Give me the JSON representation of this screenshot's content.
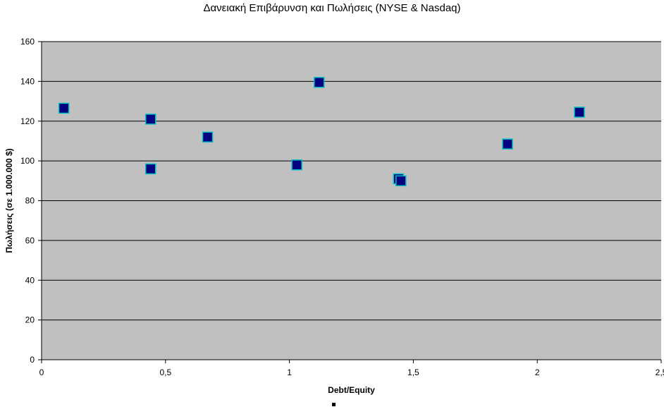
{
  "chart_data": {
    "type": "scatter",
    "title": "Δανειακή Επιβάρυνση και Πωλήσεις (NYSE & Nasdaq)",
    "xlabel": "Debt/Equity",
    "ylabel": "Πωλήσεις (σε 1.000.000 $)",
    "xlim": [
      0,
      2.5
    ],
    "ylim": [
      0,
      160
    ],
    "xticks": [
      0,
      0.5,
      1,
      1.5,
      2,
      2.5
    ],
    "xtick_labels": [
      "0",
      "0,5",
      "1",
      "1,5",
      "2",
      "2,5"
    ],
    "yticks": [
      0,
      20,
      40,
      60,
      80,
      100,
      120,
      140,
      160
    ],
    "ytick_labels": [
      "0",
      "20",
      "40",
      "60",
      "80",
      "100",
      "120",
      "140",
      "160"
    ],
    "grid": "horizontal",
    "legend": "bottom",
    "series": [
      {
        "points": [
          {
            "x": 0.09,
            "y": 126.5
          },
          {
            "x": 0.44,
            "y": 121.0
          },
          {
            "x": 0.44,
            "y": 96.0
          },
          {
            "x": 0.67,
            "y": 112.0
          },
          {
            "x": 1.03,
            "y": 98.0
          },
          {
            "x": 1.12,
            "y": 139.5
          },
          {
            "x": 1.44,
            "y": 91.0
          },
          {
            "x": 1.45,
            "y": 90.0
          },
          {
            "x": 1.88,
            "y": 108.5
          },
          {
            "x": 2.17,
            "y": 124.5
          }
        ]
      }
    ],
    "colors": {
      "plot_background": "#c0c0c0",
      "marker_fill": "#000080",
      "marker_edge": "#00c0c0",
      "gridline": "#000000"
    }
  }
}
